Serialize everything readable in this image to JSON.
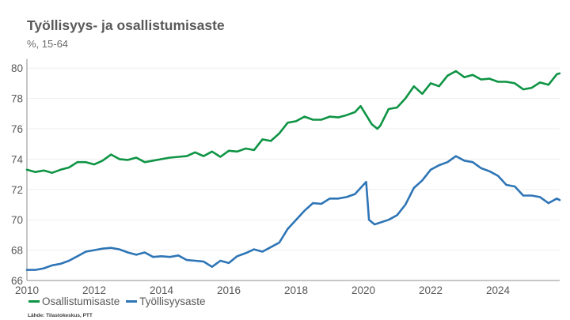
{
  "chart_data": {
    "type": "line",
    "title": "Työllisyys- ja osallistumisaste",
    "subtitle": "%, 15-64",
    "xlabel": "",
    "ylabel": "",
    "xlim": [
      "2010-01",
      "2025-11"
    ],
    "ylim": [
      66,
      80.5
    ],
    "x_ticks": [
      "2010",
      "2012",
      "2014",
      "2016",
      "2018",
      "2020",
      "2022",
      "2024"
    ],
    "y_ticks": [
      "66",
      "68",
      "70",
      "72",
      "74",
      "76",
      "78",
      "80"
    ],
    "grid": "horizontal",
    "legend_position": "bottom-left",
    "source": "Lähde: Tilastokeskus, PTT",
    "series": [
      {
        "name": "Osallistumisaste",
        "color": "#0e9444",
        "points": [
          [
            "2010-01",
            73.3
          ],
          [
            "2010-04",
            73.15
          ],
          [
            "2010-07",
            73.25
          ],
          [
            "2010-10",
            73.1
          ],
          [
            "2011-01",
            73.3
          ],
          [
            "2011-04",
            73.45
          ],
          [
            "2011-07",
            73.8
          ],
          [
            "2011-10",
            73.8
          ],
          [
            "2012-01",
            73.65
          ],
          [
            "2012-04",
            73.9
          ],
          [
            "2012-07",
            74.3
          ],
          [
            "2012-10",
            74.0
          ],
          [
            "2013-01",
            73.95
          ],
          [
            "2013-04",
            74.1
          ],
          [
            "2013-07",
            73.8
          ],
          [
            "2013-10",
            73.9
          ],
          [
            "2014-01",
            74.0
          ],
          [
            "2014-04",
            74.1
          ],
          [
            "2014-07",
            74.15
          ],
          [
            "2014-10",
            74.2
          ],
          [
            "2015-01",
            74.45
          ],
          [
            "2015-04",
            74.2
          ],
          [
            "2015-07",
            74.5
          ],
          [
            "2015-10",
            74.15
          ],
          [
            "2016-01",
            74.55
          ],
          [
            "2016-04",
            74.5
          ],
          [
            "2016-07",
            74.7
          ],
          [
            "2016-10",
            74.6
          ],
          [
            "2017-01",
            75.3
          ],
          [
            "2017-04",
            75.2
          ],
          [
            "2017-07",
            75.7
          ],
          [
            "2017-10",
            76.4
          ],
          [
            "2018-01",
            76.5
          ],
          [
            "2018-04",
            76.8
          ],
          [
            "2018-07",
            76.6
          ],
          [
            "2018-10",
            76.6
          ],
          [
            "2019-01",
            76.8
          ],
          [
            "2019-04",
            76.75
          ],
          [
            "2019-07",
            76.9
          ],
          [
            "2019-10",
            77.1
          ],
          [
            "2019-12",
            77.5
          ],
          [
            "2020-04",
            76.3
          ],
          [
            "2020-06",
            76.0
          ],
          [
            "2020-07",
            76.2
          ],
          [
            "2020-10",
            77.3
          ],
          [
            "2021-01",
            77.4
          ],
          [
            "2021-04",
            78.0
          ],
          [
            "2021-07",
            78.8
          ],
          [
            "2021-10",
            78.3
          ],
          [
            "2022-01",
            79.0
          ],
          [
            "2022-04",
            78.8
          ],
          [
            "2022-07",
            79.5
          ],
          [
            "2022-10",
            79.8
          ],
          [
            "2023-01",
            79.4
          ],
          [
            "2023-04",
            79.55
          ],
          [
            "2023-07",
            79.25
          ],
          [
            "2023-10",
            79.3
          ],
          [
            "2024-01",
            79.1
          ],
          [
            "2024-04",
            79.1
          ],
          [
            "2024-07",
            79.0
          ],
          [
            "2024-10",
            78.6
          ],
          [
            "2025-01",
            78.7
          ],
          [
            "2025-04",
            79.05
          ],
          [
            "2025-07",
            78.9
          ],
          [
            "2025-10",
            79.6
          ],
          [
            "2025-11",
            79.65
          ]
        ]
      },
      {
        "name": "Työllisyysaste",
        "color": "#2e75b6",
        "points": [
          [
            "2010-01",
            66.7
          ],
          [
            "2010-04",
            66.7
          ],
          [
            "2010-07",
            66.8
          ],
          [
            "2010-10",
            67.0
          ],
          [
            "2011-01",
            67.1
          ],
          [
            "2011-04",
            67.3
          ],
          [
            "2011-07",
            67.6
          ],
          [
            "2011-10",
            67.9
          ],
          [
            "2012-01",
            68.0
          ],
          [
            "2012-04",
            68.1
          ],
          [
            "2012-07",
            68.15
          ],
          [
            "2012-10",
            68.05
          ],
          [
            "2013-01",
            67.85
          ],
          [
            "2013-04",
            67.7
          ],
          [
            "2013-07",
            67.85
          ],
          [
            "2013-10",
            67.55
          ],
          [
            "2014-01",
            67.6
          ],
          [
            "2014-04",
            67.55
          ],
          [
            "2014-07",
            67.65
          ],
          [
            "2014-10",
            67.35
          ],
          [
            "2015-01",
            67.3
          ],
          [
            "2015-04",
            67.25
          ],
          [
            "2015-07",
            66.9
          ],
          [
            "2015-10",
            67.3
          ],
          [
            "2016-01",
            67.15
          ],
          [
            "2016-04",
            67.6
          ],
          [
            "2016-07",
            67.8
          ],
          [
            "2016-10",
            68.05
          ],
          [
            "2017-01",
            67.9
          ],
          [
            "2017-04",
            68.2
          ],
          [
            "2017-07",
            68.5
          ],
          [
            "2017-10",
            69.4
          ],
          [
            "2018-01",
            70.0
          ],
          [
            "2018-04",
            70.6
          ],
          [
            "2018-07",
            71.1
          ],
          [
            "2018-10",
            71.05
          ],
          [
            "2019-01",
            71.4
          ],
          [
            "2019-04",
            71.4
          ],
          [
            "2019-07",
            71.5
          ],
          [
            "2019-10",
            71.7
          ],
          [
            "2020-01",
            72.3
          ],
          [
            "2020-02",
            72.5
          ],
          [
            "2020-03",
            70.0
          ],
          [
            "2020-05",
            69.7
          ],
          [
            "2020-10",
            70.0
          ],
          [
            "2021-01",
            70.3
          ],
          [
            "2021-04",
            71.0
          ],
          [
            "2021-07",
            72.1
          ],
          [
            "2021-10",
            72.6
          ],
          [
            "2022-01",
            73.3
          ],
          [
            "2022-04",
            73.6
          ],
          [
            "2022-07",
            73.8
          ],
          [
            "2022-10",
            74.2
          ],
          [
            "2023-01",
            73.9
          ],
          [
            "2023-04",
            73.8
          ],
          [
            "2023-07",
            73.4
          ],
          [
            "2023-10",
            73.2
          ],
          [
            "2024-01",
            72.9
          ],
          [
            "2024-04",
            72.3
          ],
          [
            "2024-07",
            72.2
          ],
          [
            "2024-10",
            71.6
          ],
          [
            "2025-01",
            71.6
          ],
          [
            "2025-04",
            71.5
          ],
          [
            "2025-07",
            71.1
          ],
          [
            "2025-10",
            71.4
          ],
          [
            "2025-11",
            71.3
          ]
        ]
      }
    ]
  }
}
